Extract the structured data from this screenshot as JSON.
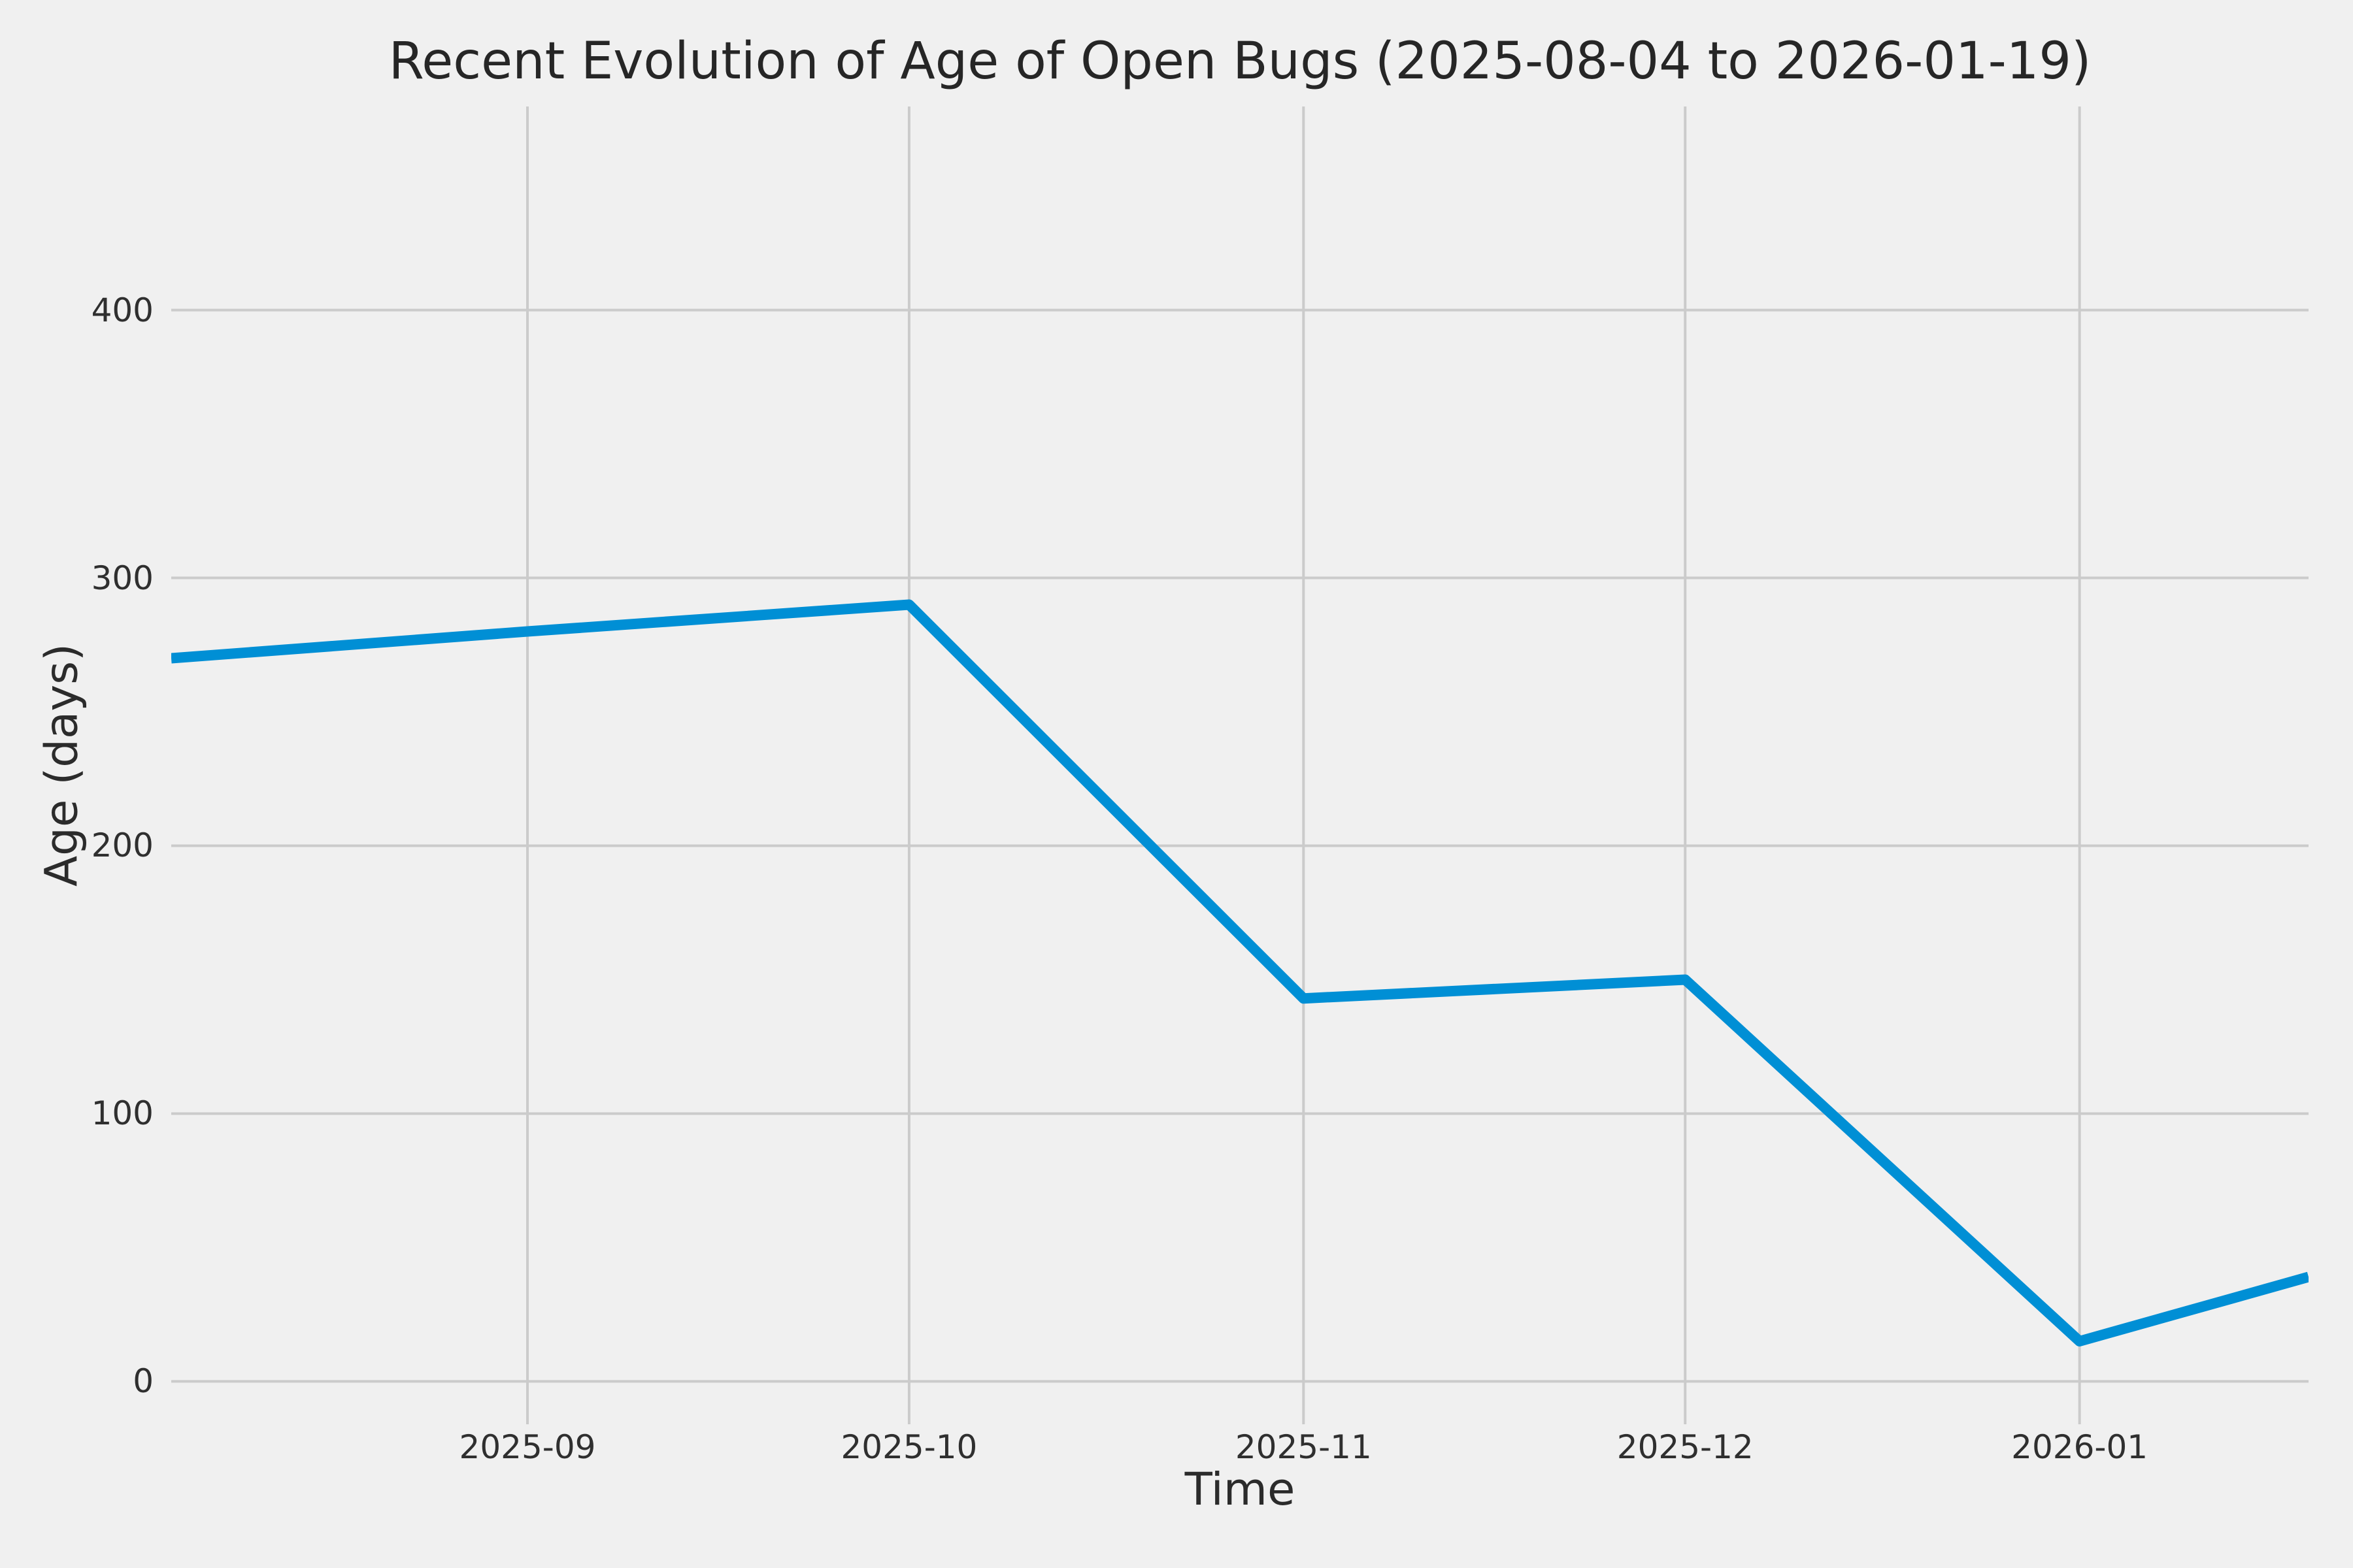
{
  "chart_data": {
    "type": "line",
    "title": "Recent Evolution of Age of Open Bugs (2025-08-04 to 2026-01-19)",
    "xlabel": "Time",
    "ylabel": "Age (days)",
    "x": [
      "2025-08-04",
      "2025-09-01",
      "2025-10-01",
      "2025-11-01",
      "2025-12-01",
      "2026-01-01",
      "2026-01-19"
    ],
    "series": [
      {
        "name": "Age of open bugs",
        "values": [
          270,
          280,
          290,
          143,
          150,
          15,
          39
        ]
      }
    ],
    "x_ticks": [
      {
        "label": "2025-09",
        "date": "2025-09-01"
      },
      {
        "label": "2025-10",
        "date": "2025-10-01"
      },
      {
        "label": "2025-11",
        "date": "2025-11-01"
      },
      {
        "label": "2025-12",
        "date": "2025-12-01"
      },
      {
        "label": "2026-01",
        "date": "2026-01-01"
      }
    ],
    "y_ticks": [
      0,
      100,
      200,
      300,
      400
    ],
    "xlim": [
      "2025-08-04",
      "2026-01-19"
    ],
    "ylim": [
      -16,
      476
    ],
    "grid": true,
    "legend": false,
    "line_color": "#008fd5",
    "grid_color": "#cbcbcb",
    "background_color": "#f0f0f0",
    "text_color": "#2f2f2f"
  }
}
